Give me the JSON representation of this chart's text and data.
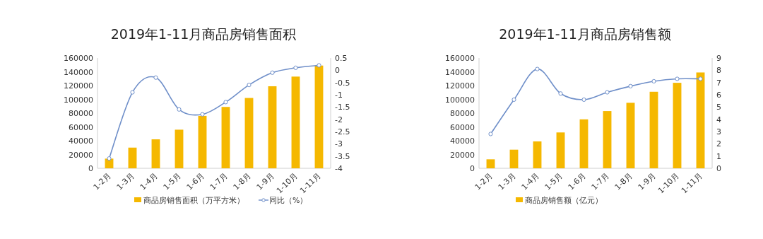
{
  "chart_data": [
    {
      "type": "bar",
      "title": "2019年1-11月商品房销售面积",
      "categories": [
        "1-2月",
        "1-3月",
        "1-4月",
        "1-5月",
        "1-6月",
        "1-7月",
        "1-8月",
        "1-9月",
        "1-10月",
        "1-11月"
      ],
      "series": [
        {
          "name": "商品房销售面积（万平方米）",
          "color": "#f5b800",
          "values": [
            14000,
            30000,
            42000,
            56000,
            76000,
            89000,
            102000,
            119000,
            133000,
            149000
          ]
        },
        {
          "name": "同比（%）",
          "type": "line",
          "axis": "y2",
          "color": "#6f8fc9",
          "marker": "circle",
          "values": [
            -3.6,
            -0.9,
            -0.3,
            -1.6,
            -1.8,
            -1.3,
            -0.6,
            -0.1,
            0.1,
            0.2
          ]
        }
      ],
      "ylim": [
        0,
        160000
      ],
      "yticks": [
        0,
        20000,
        40000,
        60000,
        80000,
        100000,
        120000,
        140000,
        160000
      ],
      "y2lim": [
        -4,
        0.5
      ],
      "y2ticks": [
        -4,
        -3.5,
        -3,
        -2.5,
        -2,
        -1.5,
        -1,
        -0.5,
        0,
        0.5
      ],
      "grid": false,
      "legend": "bottom"
    },
    {
      "type": "bar",
      "title": "2019年1-11月商品房销售额",
      "categories": [
        "1-2月",
        "1-3月",
        "1-4月",
        "1-5月",
        "1-6月",
        "1-7月",
        "1-8月",
        "1-9月",
        "1-10月",
        "1-11月"
      ],
      "series": [
        {
          "name": "商品房销售额（亿元）",
          "color": "#f5b800",
          "values": [
            13000,
            27000,
            39000,
            52000,
            71000,
            83000,
            95000,
            111000,
            124000,
            139000
          ]
        },
        {
          "type": "line",
          "axis": "y2",
          "color": "#6f8fc9",
          "marker": "circle",
          "values": [
            2.8,
            5.6,
            8.1,
            6.1,
            5.6,
            6.2,
            6.7,
            7.1,
            7.3,
            7.3
          ]
        }
      ],
      "ylim": [
        0,
        160000
      ],
      "yticks": [
        0,
        20000,
        40000,
        60000,
        80000,
        100000,
        120000,
        140000,
        160000
      ],
      "y2lim": [
        0,
        9
      ],
      "y2ticks": [
        0,
        1,
        2,
        3,
        4,
        5,
        6,
        7,
        8,
        9
      ],
      "grid": false,
      "legend": "bottom"
    }
  ]
}
